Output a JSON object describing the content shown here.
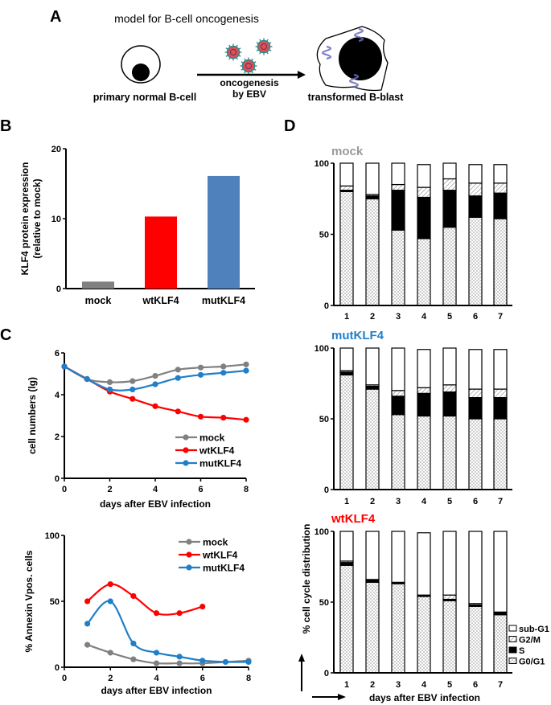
{
  "panels": {
    "A": {
      "letter": "A",
      "title": "model for B-cell oncogenesis",
      "left_label": "primary normal B-cell",
      "arrow_label_1": "oncogenesis",
      "arrow_label_2": "by EBV",
      "right_label": "transformed B-blast"
    },
    "B": {
      "letter": "B"
    },
    "C": {
      "letter": "C"
    },
    "D": {
      "letter": "D"
    }
  },
  "colors": {
    "mock": "#808080",
    "wtKLF4": "#ff0000",
    "mutKLF4": "#1f7fc8",
    "mutKLF4_bar": "#4f81bd",
    "virus_capsid": "#e05050",
    "virus_spikes": "#2a8a8a",
    "episome": "#6b6bbf"
  },
  "chart_data": [
    {
      "id": "B",
      "type": "bar",
      "categories": [
        "mock",
        "wtKLF4",
        "mutKLF4"
      ],
      "values": [
        1.0,
        10.3,
        16.1
      ],
      "ylabel_1": "KLF4 protein expression",
      "ylabel_2": "(relative to mock)",
      "ylim": [
        0,
        20
      ],
      "yticks": [
        "0",
        "10",
        "20"
      ],
      "grid": false
    },
    {
      "id": "C-top",
      "type": "line",
      "x": [
        0,
        1,
        2,
        3,
        4,
        5,
        6,
        7,
        8
      ],
      "series": [
        {
          "name": "mock",
          "values": [
            5.35,
            4.75,
            4.6,
            4.65,
            4.9,
            5.2,
            5.3,
            5.35,
            5.45
          ]
        },
        {
          "name": "wtKLF4",
          "values": [
            5.35,
            4.75,
            4.15,
            3.8,
            3.45,
            3.2,
            2.95,
            2.9,
            2.8
          ]
        },
        {
          "name": "mutKLF4",
          "values": [
            5.35,
            4.75,
            4.25,
            4.25,
            4.5,
            4.8,
            4.95,
            5.05,
            5.15
          ]
        }
      ],
      "xlabel": "days after EBV infection",
      "ylabel": "cell numbers (lg)",
      "xlim": [
        0,
        8
      ],
      "ylim": [
        0,
        6
      ],
      "xticks": [
        "0",
        "2",
        "4",
        "6",
        "8"
      ],
      "yticks": [
        "0",
        "2",
        "4",
        "6"
      ],
      "legend": "bottom-right",
      "grid": false
    },
    {
      "id": "C-bottom",
      "type": "line",
      "series": [
        {
          "name": "mock",
          "x": [
            1,
            2,
            3,
            4,
            5,
            6,
            8
          ],
          "values": [
            17,
            11,
            6,
            3,
            3,
            3,
            5
          ]
        },
        {
          "name": "wtKLF4",
          "x": [
            1,
            2,
            3,
            4,
            5,
            6
          ],
          "values": [
            50,
            63,
            54,
            41,
            41,
            46
          ]
        },
        {
          "name": "mutKLF4",
          "x": [
            1,
            2,
            3,
            4,
            5,
            6,
            7,
            8
          ],
          "values": [
            33,
            50,
            18,
            11,
            8,
            5,
            4,
            4
          ]
        }
      ],
      "xlabel": "days after EBV infection",
      "ylabel": "% Annexin Vpos. cells",
      "xlim": [
        0,
        8
      ],
      "ylim": [
        0,
        100
      ],
      "xticks": [
        "0",
        "2",
        "4",
        "6",
        "8"
      ],
      "yticks": [
        "0",
        "50",
        "100"
      ],
      "legend": "top-right",
      "grid": false
    },
    {
      "id": "D",
      "type": "bar",
      "stacked": true,
      "categories": [
        "1",
        "2",
        "3",
        "4",
        "5",
        "6",
        "7"
      ],
      "stack_order": [
        "G0/G1",
        "S",
        "G2/M",
        "sub-G1"
      ],
      "legend_entries": [
        "sub-G1",
        "G2/M",
        "S",
        "G0/G1"
      ],
      "ylabel": "% cell cycle distribution",
      "xlabel": "days after EBV infection",
      "ylim": [
        0,
        100
      ],
      "yticks": [
        "0",
        "50",
        "100"
      ],
      "legend": "bottom-right",
      "subplots": [
        {
          "title": "mock",
          "title_color": "#999999",
          "series": {
            "G0/G1": [
              80,
              75,
              53,
              47,
              55,
              62,
              61
            ],
            "S": [
              1,
              2,
              28,
              29,
              26,
              15,
              18
            ],
            "G2/M": [
              3,
              1,
              4,
              7,
              8,
              9,
              7
            ],
            "sub-G1": [
              16,
              22,
              15,
              16,
              11,
              13,
              13
            ]
          }
        },
        {
          "title": "mutKLF4",
          "title_color": "#1f7fc8",
          "series": {
            "G0/G1": [
              81,
              71,
              53,
              52,
              52,
              50,
              50
            ],
            "S": [
              2,
              2,
              13,
              16,
              17,
              15,
              15
            ],
            "G2/M": [
              1,
              1,
              4,
              4,
              5,
              6,
              6
            ],
            "sub-G1": [
              16,
              26,
              30,
              27,
              26,
              28,
              28
            ]
          }
        },
        {
          "title": "wtKLF4",
          "title_color": "#ff0000",
          "series": {
            "G0/G1": [
              76,
              64,
              63,
              54,
              51,
              47,
              41
            ],
            "S": [
              2,
              2,
              1,
              1,
              1,
              1,
              2
            ],
            "G2/M": [
              1,
              0,
              0,
              0,
              3,
              1,
              0
            ],
            "sub-G1": [
              21,
              34,
              36,
              44,
              45,
              51,
              57
            ]
          }
        }
      ]
    }
  ]
}
